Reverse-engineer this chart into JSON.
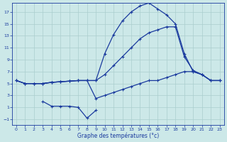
{
  "bg_color": "#cce8e8",
  "line_color": "#1a3a9e",
  "grid_color": "#aacece",
  "xlabel": "Graphe des températures (°c)",
  "xlim": [
    -0.5,
    23.5
  ],
  "ylim": [
    -2.0,
    18.5
  ],
  "yticks": [
    -1,
    1,
    3,
    5,
    7,
    9,
    11,
    13,
    15,
    17
  ],
  "xticks": [
    0,
    1,
    2,
    3,
    4,
    5,
    6,
    7,
    8,
    9,
    10,
    11,
    12,
    13,
    14,
    15,
    16,
    17,
    18,
    19,
    20,
    21,
    22,
    23
  ],
  "curve_top_x": [
    0,
    1,
    2,
    3,
    4,
    5,
    6,
    7,
    8,
    9,
    10,
    11,
    12,
    13,
    14,
    15,
    16,
    17,
    18,
    19,
    20,
    21,
    22,
    23
  ],
  "curve_top_y": [
    5.5,
    5.0,
    5.0,
    5.0,
    5.2,
    5.3,
    5.4,
    5.5,
    5.5,
    5.5,
    10.0,
    13.2,
    15.5,
    17.0,
    18.0,
    18.5,
    17.5,
    16.5,
    15.0,
    10.0,
    7.0,
    6.5,
    5.5,
    5.5
  ],
  "curve_mid_x": [
    0,
    1,
    2,
    3,
    4,
    5,
    6,
    7,
    8,
    9,
    10,
    11,
    12,
    13,
    14,
    15,
    16,
    17,
    18,
    19,
    20,
    21,
    22,
    23
  ],
  "curve_mid_y": [
    5.5,
    5.0,
    5.0,
    5.0,
    5.2,
    5.3,
    5.4,
    5.5,
    5.5,
    5.5,
    6.5,
    8.0,
    9.5,
    11.0,
    12.5,
    13.5,
    14.0,
    14.5,
    14.5,
    9.5,
    7.2,
    6.5,
    5.5,
    5.5
  ],
  "curve_low_x": [
    0,
    1,
    2,
    3,
    4,
    5,
    6,
    7,
    8,
    9,
    10,
    11,
    12,
    13,
    14,
    15,
    16,
    17,
    18,
    19,
    20,
    21,
    22,
    23
  ],
  "curve_low_y": [
    5.5,
    5.0,
    5.0,
    5.0,
    5.2,
    5.3,
    5.4,
    5.5,
    5.5,
    2.5,
    3.0,
    3.5,
    4.0,
    4.5,
    5.0,
    5.5,
    5.5,
    6.0,
    6.5,
    7.0,
    7.0,
    6.5,
    5.5,
    5.5
  ],
  "curve_dip_x": [
    3,
    4,
    5,
    6,
    7,
    8,
    9
  ],
  "curve_dip_y": [
    2.0,
    1.2,
    1.2,
    1.2,
    1.0,
    -0.8,
    0.5
  ]
}
